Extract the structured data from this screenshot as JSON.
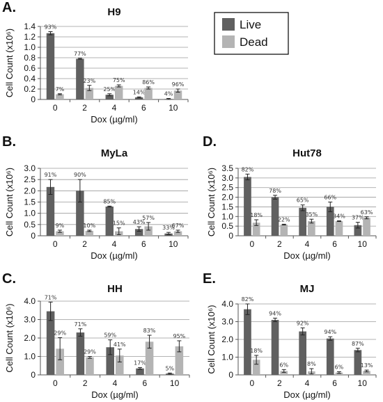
{
  "legend": {
    "position": "top-right",
    "entries": [
      {
        "name": "Live",
        "color": "#606060"
      },
      {
        "name": "Dead",
        "color": "#b4b4b4"
      }
    ]
  },
  "chart_data": [
    {
      "panel": "A.",
      "title": "H9",
      "type": "bar",
      "categories": [
        "0",
        "2",
        "4",
        "6",
        "10"
      ],
      "xlabel": "Dox (µg/ml)",
      "ylabel": "Cell Count (x10⁶)",
      "ylim": [
        0,
        1.4
      ],
      "yticks": [
        "0",
        "0.2",
        "0.4",
        "0.6",
        "0.8",
        "1.0",
        "1.2",
        "1.4"
      ],
      "grid": true,
      "series": [
        {
          "name": "Live",
          "values": [
            1.27,
            0.78,
            0.09,
            0.04,
            0.01
          ],
          "errors": [
            0.03,
            0.01,
            0.02,
            0.01,
            0.01
          ],
          "labels": [
            "93%",
            "77%",
            "25%",
            "14%",
            "4%"
          ]
        },
        {
          "name": "Dead",
          "values": [
            0.1,
            0.22,
            0.26,
            0.22,
            0.17
          ],
          "errors": [
            0.01,
            0.05,
            0.02,
            0.02,
            0.03
          ],
          "labels": [
            "7%",
            "23%",
            "75%",
            "86%",
            "96%"
          ]
        }
      ]
    },
    {
      "panel": "B.",
      "title": "MyLa",
      "type": "bar",
      "categories": [
        "0",
        "2",
        "4",
        "6",
        "10"
      ],
      "xlabel": "Dox (µg/ml)",
      "ylabel": "Cell Count (x10⁶)",
      "ylim": [
        0,
        3.0
      ],
      "yticks": [
        "0",
        "0.5",
        "1.0",
        "1.5",
        "2.0",
        "2.5",
        "3.0"
      ],
      "grid": true,
      "series": [
        {
          "name": "Live",
          "values": [
            2.17,
            2.0,
            1.3,
            0.3,
            0.1
          ],
          "errors": [
            0.33,
            0.5,
            0.02,
            0.1,
            0.05
          ],
          "labels": [
            "91%",
            "90%",
            "85%",
            "43%",
            "33%"
          ]
        },
        {
          "name": "Dead",
          "values": [
            0.2,
            0.22,
            0.2,
            0.42,
            0.2
          ],
          "errors": [
            0.05,
            0.03,
            0.15,
            0.17,
            0.05
          ],
          "labels": [
            "9%",
            "10%",
            "15%",
            "57%",
            "67%"
          ]
        }
      ]
    },
    {
      "panel": "C.",
      "title": "HH",
      "type": "bar",
      "categories": [
        "0",
        "2",
        "4",
        "6",
        "10"
      ],
      "xlabel": "Dox (µg/ml)",
      "ylabel": "Cell Count (x10⁶)",
      "ylim": [
        0,
        4.0
      ],
      "yticks": [
        "0",
        "1.0",
        "2.0",
        "3.0",
        "4.0"
      ],
      "grid": true,
      "series": [
        {
          "name": "Live",
          "values": [
            3.45,
            2.3,
            1.5,
            0.35,
            0.07
          ],
          "errors": [
            0.5,
            0.2,
            0.4,
            0.05,
            0.03
          ],
          "labels": [
            "71%",
            "71%",
            "59%",
            "17%",
            "5%"
          ]
        },
        {
          "name": "Dead",
          "values": [
            1.42,
            0.95,
            1.05,
            1.8,
            1.55
          ],
          "errors": [
            0.6,
            0.05,
            0.35,
            0.35,
            0.3
          ],
          "labels": [
            "29%",
            "29%",
            "41%",
            "83%",
            "95%"
          ]
        }
      ]
    },
    {
      "panel": "D.",
      "title": "Hut78",
      "type": "bar",
      "categories": [
        "0",
        "2",
        "4",
        "6",
        "10"
      ],
      "xlabel": "Dox (µg/ml)",
      "ylabel": "Cell Count (x10⁶)",
      "ylim": [
        0,
        3.5
      ],
      "yticks": [
        "0",
        "0.5",
        "1.0",
        "1.5",
        "2.0",
        "2.5",
        "3.0",
        "3.5"
      ],
      "grid": true,
      "series": [
        {
          "name": "Live",
          "values": [
            3.05,
            2.0,
            1.45,
            1.5,
            0.55
          ],
          "errors": [
            0.15,
            0.1,
            0.15,
            0.25,
            0.15
          ],
          "labels": [
            "82%",
            "78%",
            "65%",
            "66%",
            "37%"
          ]
        },
        {
          "name": "Dead",
          "values": [
            0.68,
            0.58,
            0.76,
            0.76,
            0.93
          ],
          "errors": [
            0.15,
            0.02,
            0.1,
            0.02,
            0.05
          ],
          "labels": [
            "18%",
            "22%",
            "35%",
            "34%",
            "63%"
          ]
        }
      ]
    },
    {
      "panel": "E.",
      "title": "MJ",
      "type": "bar",
      "categories": [
        "0",
        "2",
        "4",
        "6",
        "10"
      ],
      "xlabel": "Dox (µg/ml)",
      "ylabel": "Cell Count (x10⁶)",
      "ylim": [
        0,
        4.0
      ],
      "yticks": [
        "0",
        "1.0",
        "2.0",
        "3.0",
        "4.0"
      ],
      "grid": true,
      "series": [
        {
          "name": "Live",
          "values": [
            3.7,
            3.1,
            2.45,
            2.05,
            1.4
          ],
          "errors": [
            0.3,
            0.1,
            0.2,
            0.1,
            0.1
          ],
          "labels": [
            "82%",
            "94%",
            "92%",
            "94%",
            "87%"
          ]
        },
        {
          "name": "Dead",
          "values": [
            0.85,
            0.22,
            0.2,
            0.13,
            0.22
          ],
          "errors": [
            0.25,
            0.08,
            0.15,
            0.05,
            0.05
          ],
          "labels": [
            "18%",
            "6%",
            "8%",
            "6%",
            "13%"
          ]
        }
      ]
    }
  ]
}
